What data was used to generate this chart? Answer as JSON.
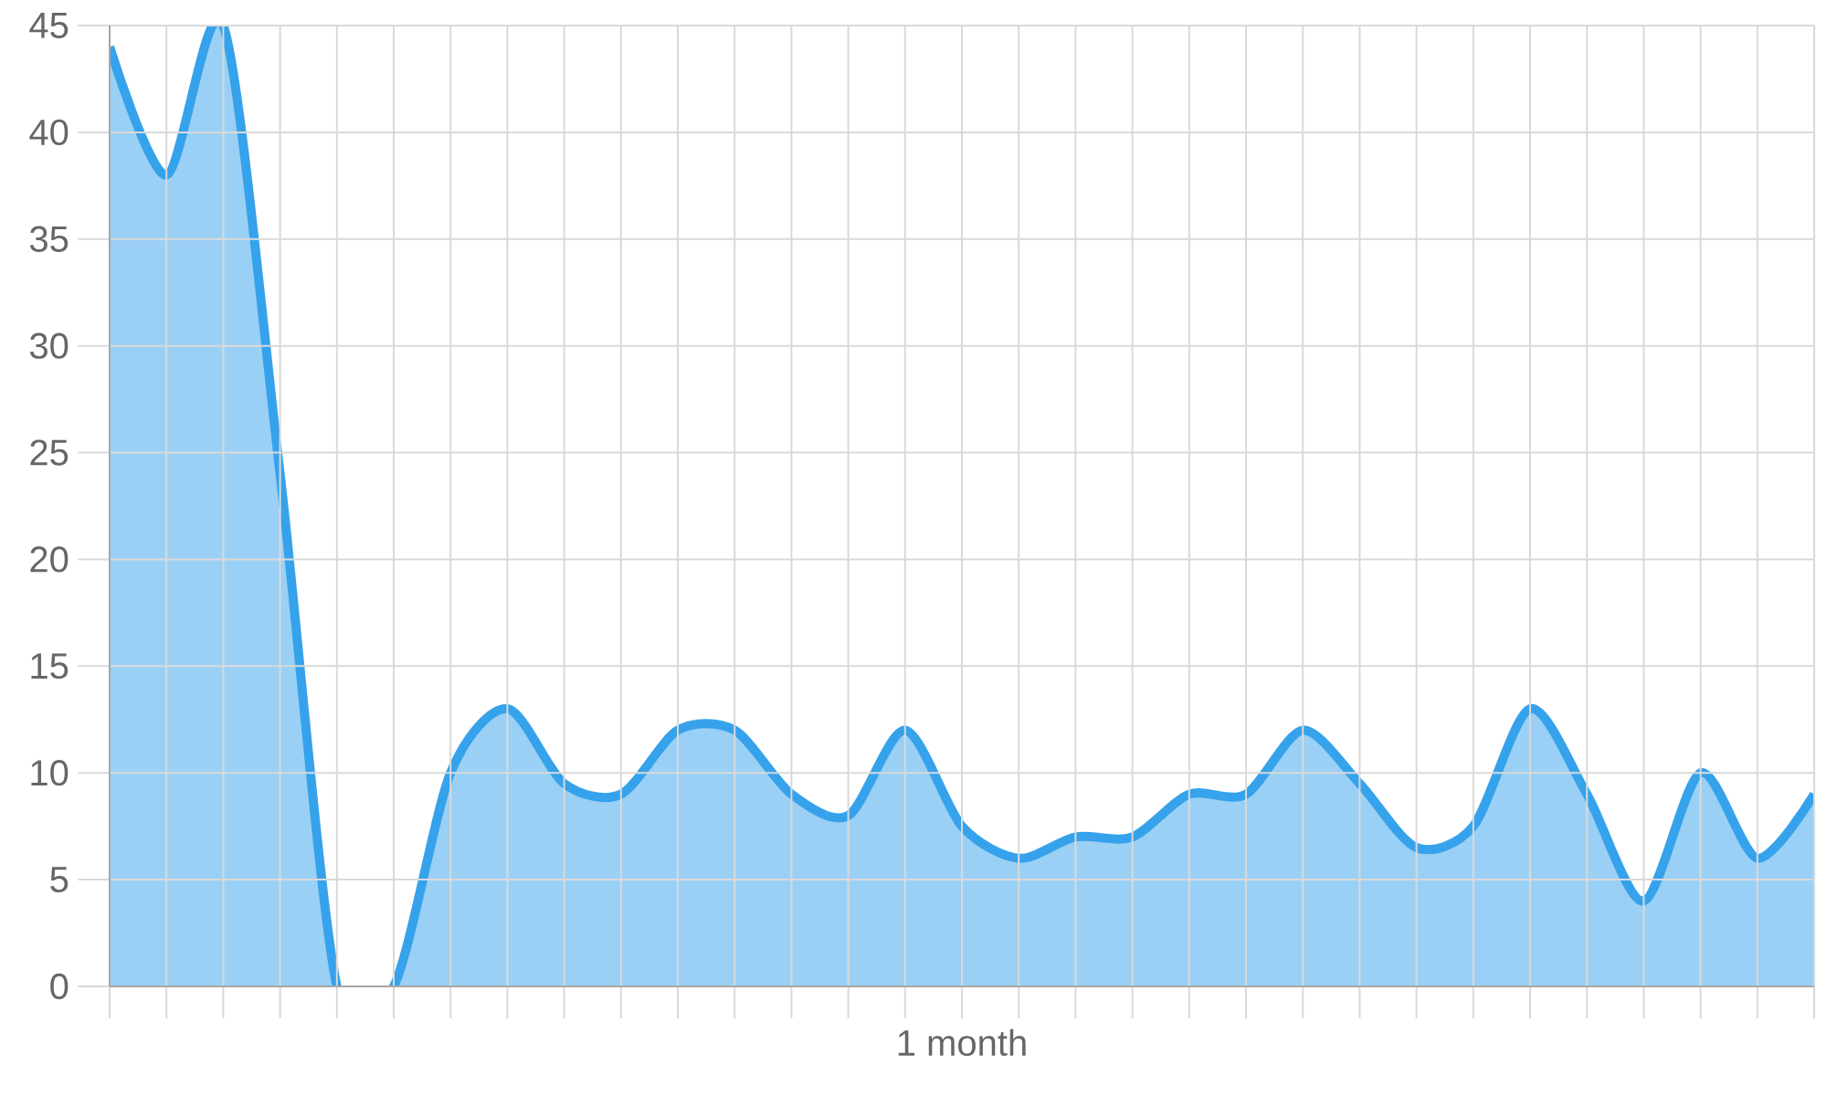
{
  "chart_data": {
    "type": "area",
    "categories": [
      null,
      null,
      null,
      null,
      null,
      null,
      null,
      null,
      null,
      null,
      null,
      null,
      null,
      null,
      null,
      "1 month",
      null,
      null,
      null,
      null,
      null,
      null,
      null,
      null,
      null,
      null,
      null,
      null,
      null,
      null,
      null
    ],
    "values": [
      44,
      38,
      45,
      24,
      0,
      0,
      10,
      13,
      9.5,
      9,
      12,
      12,
      9,
      8,
      12,
      7.5,
      6,
      7,
      7,
      9,
      9,
      12,
      9.5,
      6.5,
      7.5,
      13,
      9,
      4,
      10,
      6,
      9
    ],
    "color": "#36a2eb",
    "ylim": [
      0,
      45
    ],
    "yticks": [
      0,
      5,
      10,
      15,
      20,
      25,
      30,
      35,
      40,
      45
    ],
    "grid": true
  }
}
